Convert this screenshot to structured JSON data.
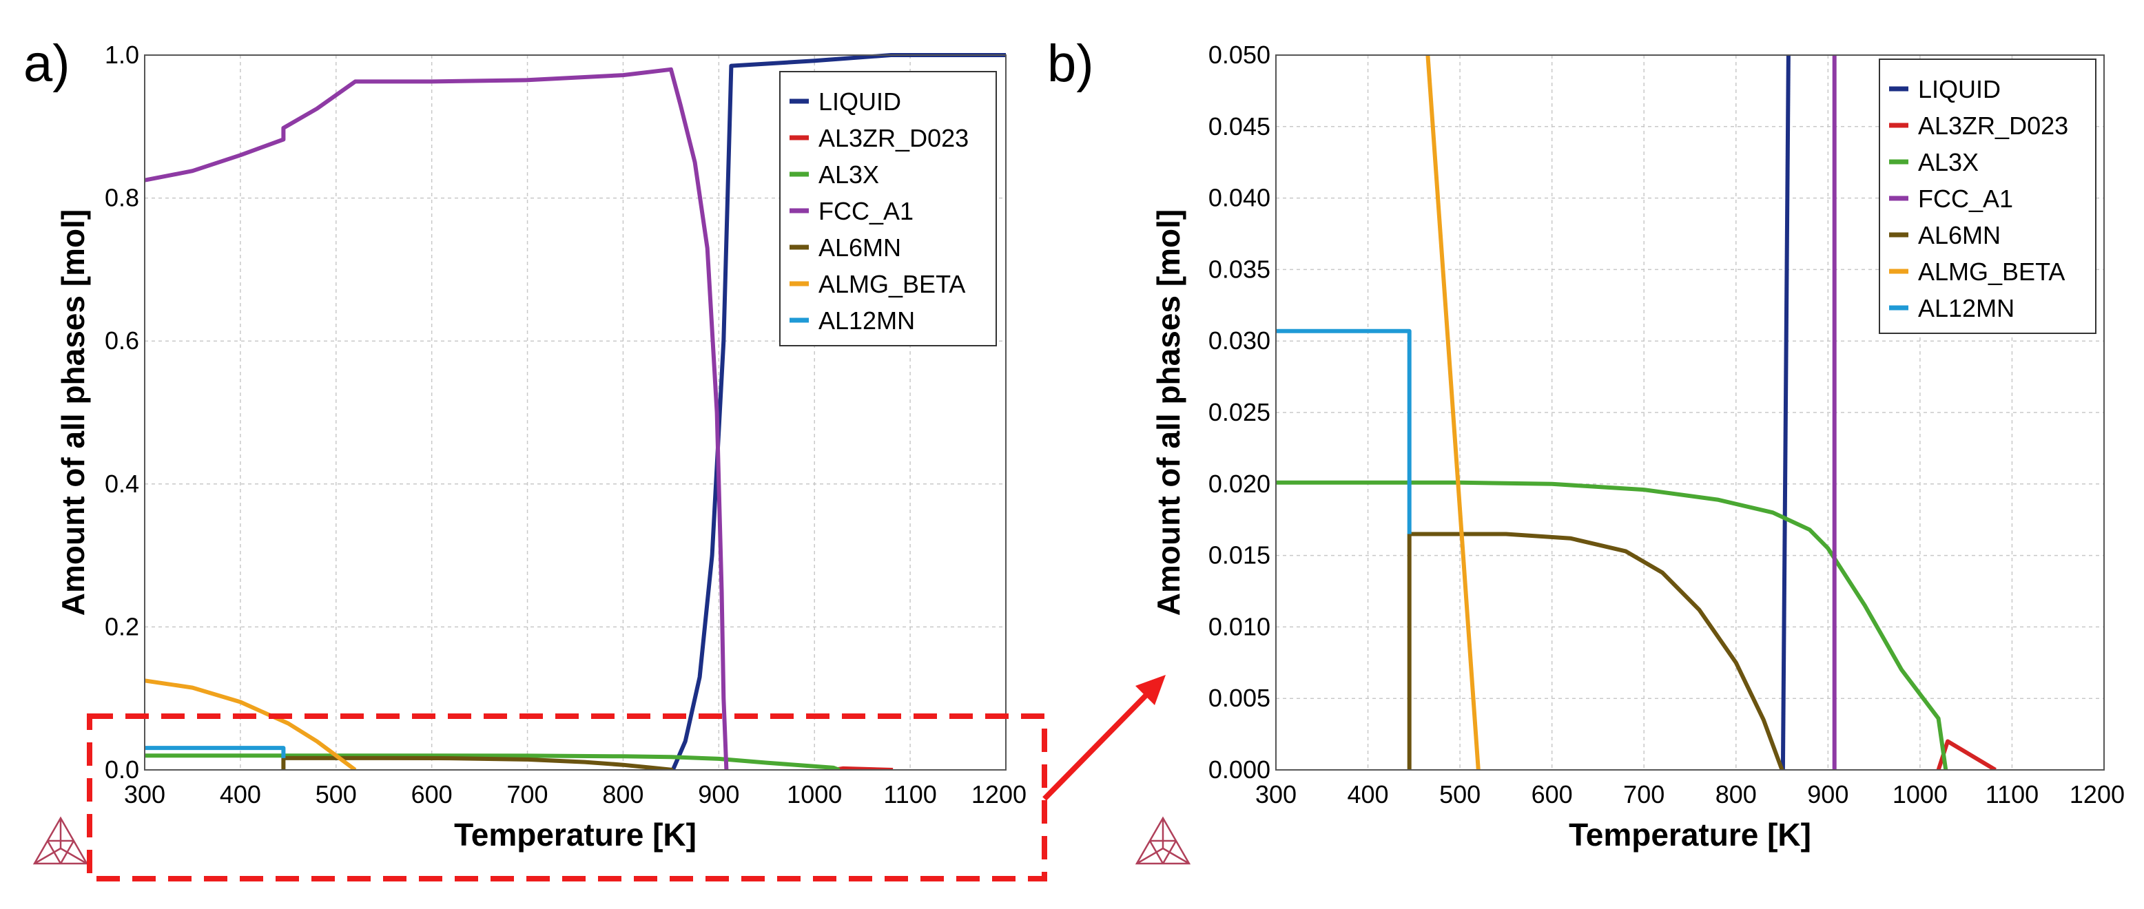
{
  "colors": {
    "LIQUID": "#1c2f85",
    "AL3ZR_D023": "#d42323",
    "AL3X": "#4aa832",
    "FCC_A1": "#8e3aa4",
    "AL6MN": "#6b5410",
    "ALMG_BETA": "#f0a21c",
    "AL12MN": "#1f9ad6",
    "zoom_box": "#ee1c1c",
    "logo": "#b0405a"
  },
  "logo_icon": "thermo-calc-triangle-icon",
  "chart_data": [
    {
      "panel_label": "a)",
      "type": "line",
      "xlabel": "Temperature [K]",
      "ylabel": "Amount of all phases [mol]",
      "xlim": [
        300,
        1200
      ],
      "ylim": [
        0,
        1
      ],
      "xticks": [
        "300",
        "400",
        "500",
        "600",
        "700",
        "800",
        "900",
        "1000",
        "1100",
        "1200"
      ],
      "yticks": [
        "0.0",
        "0.2",
        "0.4",
        "0.6",
        "0.8",
        "1.0"
      ],
      "grid": true,
      "legend_position": "top-right",
      "legend": [
        "LIQUID",
        "AL3ZR_D023",
        "AL3X",
        "FCC_A1",
        "AL6MN",
        "ALMG_BETA",
        "AL12MN"
      ],
      "series": [
        {
          "name": "LIQUID",
          "points": [
            [
              852,
              0
            ],
            [
              865,
              0.04
            ],
            [
              880,
              0.13
            ],
            [
              893,
              0.3
            ],
            [
              905,
              0.6
            ],
            [
              913,
              0.985
            ],
            [
              1000,
              0.992
            ],
            [
              1080,
              1.0
            ],
            [
              1200,
              1.0
            ]
          ]
        },
        {
          "name": "AL3ZR_D023",
          "points": [
            [
              1020,
              0
            ],
            [
              1030,
              0.002
            ],
            [
              1082,
              0
            ]
          ]
        },
        {
          "name": "AL3X",
          "points": [
            [
              300,
              0.02
            ],
            [
              500,
              0.02
            ],
            [
              700,
              0.0198
            ],
            [
              800,
              0.019
            ],
            [
              850,
              0.018
            ],
            [
              900,
              0.0155
            ],
            [
              950,
              0.01
            ],
            [
              1020,
              0.003
            ],
            [
              1026,
              0
            ]
          ]
        },
        {
          "name": "FCC_A1",
          "points": [
            [
              300,
              0.825
            ],
            [
              350,
              0.838
            ],
            [
              400,
              0.86
            ],
            [
              445,
              0.882
            ],
            [
              445,
              0.898
            ],
            [
              480,
              0.925
            ],
            [
              520,
              0.963
            ],
            [
              600,
              0.963
            ],
            [
              700,
              0.965
            ],
            [
              800,
              0.972
            ],
            [
              850,
              0.98
            ],
            [
              860,
              0.93
            ],
            [
              875,
              0.85
            ],
            [
              888,
              0.73
            ],
            [
              898,
              0.5
            ],
            [
              903,
              0.25
            ],
            [
              905,
              0.1
            ],
            [
              908,
              0
            ]
          ]
        },
        {
          "name": "AL6MN",
          "points": [
            [
              445,
              0
            ],
            [
              445,
              0.0165
            ],
            [
              550,
              0.0165
            ],
            [
              620,
              0.0163
            ],
            [
              700,
              0.0145
            ],
            [
              760,
              0.011
            ],
            [
              800,
              0.007
            ],
            [
              830,
              0.003
            ],
            [
              852,
              0
            ]
          ]
        },
        {
          "name": "ALMG_BETA",
          "points": [
            [
              300,
              0.125
            ],
            [
              350,
              0.115
            ],
            [
              400,
              0.095
            ],
            [
              450,
              0.065
            ],
            [
              480,
              0.04
            ],
            [
              500,
              0.02
            ],
            [
              520,
              0
            ]
          ]
        },
        {
          "name": "AL12MN",
          "points": [
            [
              300,
              0.0307
            ],
            [
              445,
              0.0307
            ],
            [
              445,
              0.0165
            ]
          ]
        }
      ]
    },
    {
      "panel_label": "b)",
      "type": "line",
      "xlabel": "Temperature [K]",
      "ylabel": "Amount of all phases [mol]",
      "xlim": [
        300,
        1200
      ],
      "ylim": [
        0,
        0.05
      ],
      "xticks": [
        "300",
        "400",
        "500",
        "600",
        "700",
        "800",
        "900",
        "1000",
        "1100",
        "1200"
      ],
      "yticks": [
        "0.000",
        "0.005",
        "0.010",
        "0.015",
        "0.020",
        "0.025",
        "0.030",
        "0.035",
        "0.040",
        "0.045",
        "0.050"
      ],
      "grid": true,
      "legend_position": "top-right",
      "legend": [
        "LIQUID",
        "AL3ZR_D023",
        "AL3X",
        "FCC_A1",
        "AL6MN",
        "ALMG_BETA",
        "AL12MN"
      ],
      "series": [
        {
          "name": "LIQUID",
          "points": [
            [
              851,
              0
            ],
            [
              857,
              0.05
            ]
          ]
        },
        {
          "name": "AL3ZR_D023",
          "points": [
            [
              1020,
              0
            ],
            [
              1030,
              0.002
            ],
            [
              1082,
              0
            ]
          ]
        },
        {
          "name": "AL3X",
          "points": [
            [
              300,
              0.0201
            ],
            [
              400,
              0.0201
            ],
            [
              500,
              0.0201
            ],
            [
              600,
              0.02
            ],
            [
              700,
              0.0196
            ],
            [
              780,
              0.0189
            ],
            [
              840,
              0.018
            ],
            [
              880,
              0.0168
            ],
            [
              900,
              0.0155
            ],
            [
              940,
              0.0115
            ],
            [
              980,
              0.007
            ],
            [
              1020,
              0.0036
            ],
            [
              1028,
              0
            ]
          ]
        },
        {
          "name": "FCC_A1",
          "points": [
            [
              907,
              0
            ],
            [
              907,
              0.05
            ]
          ]
        },
        {
          "name": "AL6MN",
          "points": [
            [
              445,
              0
            ],
            [
              445,
              0.0165
            ],
            [
              550,
              0.0165
            ],
            [
              620,
              0.0162
            ],
            [
              680,
              0.0153
            ],
            [
              720,
              0.0138
            ],
            [
              760,
              0.0112
            ],
            [
              800,
              0.0075
            ],
            [
              830,
              0.0035
            ],
            [
              850,
              0
            ]
          ]
        },
        {
          "name": "ALMG_BETA",
          "points": [
            [
              465,
              0.05
            ],
            [
              520,
              0
            ]
          ]
        },
        {
          "name": "AL12MN",
          "points": [
            [
              300,
              0.0307
            ],
            [
              445,
              0.0307
            ],
            [
              445,
              0.0165
            ]
          ]
        }
      ]
    }
  ]
}
